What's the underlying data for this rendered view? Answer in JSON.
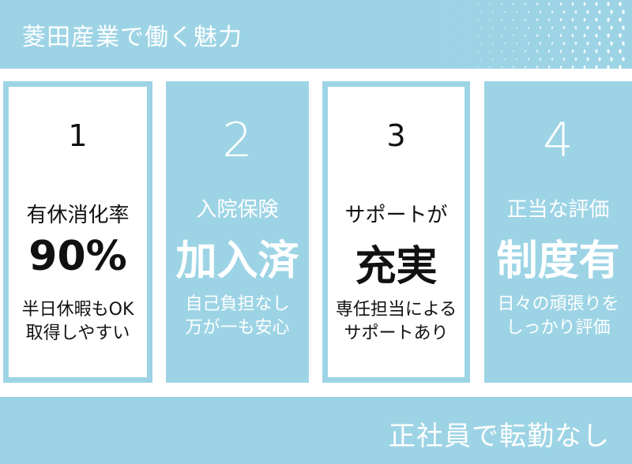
{
  "header": {
    "title": "菱田産業で働く魅力"
  },
  "cards": [
    {
      "number": "1",
      "heading": "有休消化率",
      "highlight": "90%",
      "desc_line1": "半日休暇もOK",
      "desc_line2": "取得しやすい"
    },
    {
      "number": "2",
      "heading": "入院保険",
      "highlight": "加入済",
      "desc_line1": "自己負担なし",
      "desc_line2": "万が一も安心"
    },
    {
      "number": "3",
      "heading": "サポートが",
      "highlight": "充実",
      "desc_line1": "専任担当による",
      "desc_line2": "サポートあり"
    },
    {
      "number": "4",
      "heading": "正当な評価",
      "highlight": "制度有",
      "desc_line1": "日々の頑張りを",
      "desc_line2": "しっかり評価"
    }
  ],
  "footer": {
    "text": "正社員で転勤なし"
  },
  "colors": {
    "accent": "#9dd4e5",
    "text_dark": "#111111",
    "text_light": "#ffffff"
  }
}
